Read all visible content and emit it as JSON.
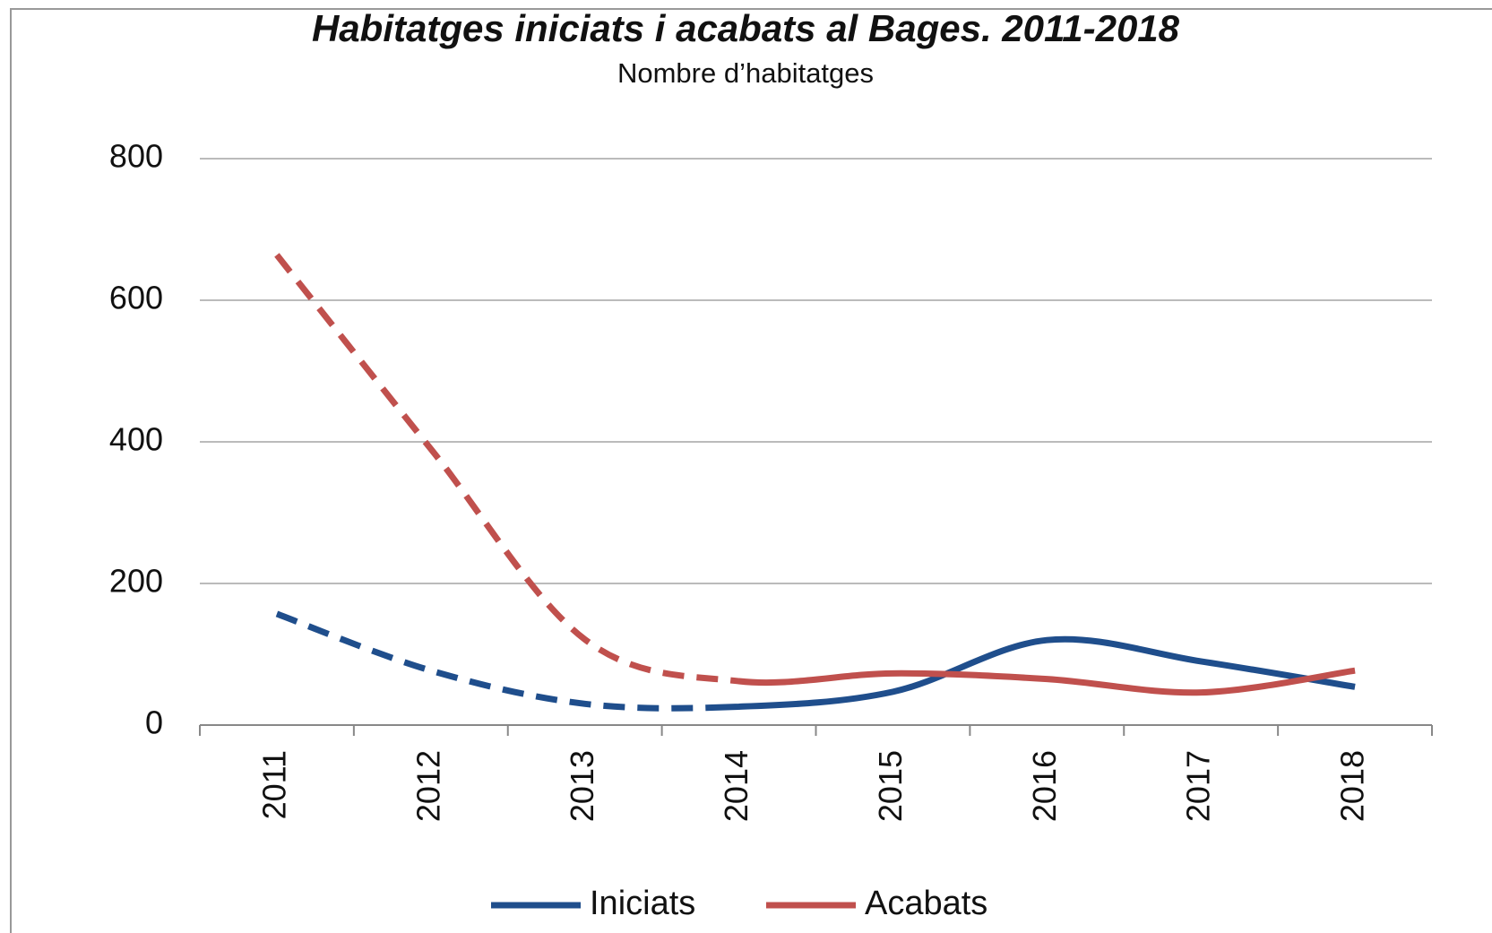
{
  "chart_data": {
    "type": "line",
    "title": "Habitatges iniciats i acabats al Bages. 2011-2018",
    "subtitle": "Nombre d’habitatges",
    "categories": [
      "2011",
      "2012",
      "2013",
      "2014",
      "2015",
      "2016",
      "2017",
      "2018"
    ],
    "series": [
      {
        "name": "Iniciats",
        "color": "#1f4e8c",
        "values": [
          157,
          77,
          30,
          26,
          47,
          120,
          90,
          54
        ]
      },
      {
        "name": "Acabats",
        "color": "#c0504d",
        "values": [
          664,
          390,
          121,
          62,
          73,
          65,
          46,
          77
        ]
      }
    ],
    "ylim": [
      0,
      800
    ],
    "yticks": [
      0,
      200,
      400,
      600,
      800
    ],
    "grid": true,
    "legend": "bottom"
  }
}
